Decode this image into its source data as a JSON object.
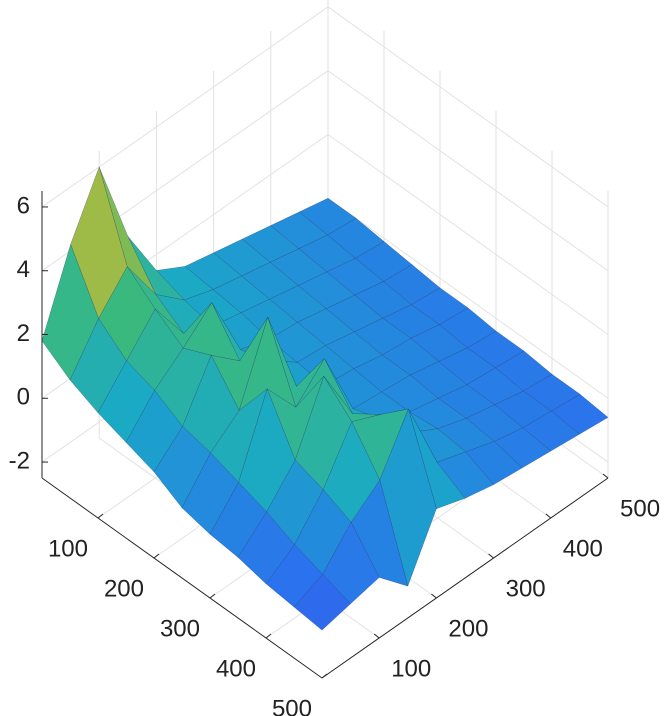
{
  "chart_data": {
    "type": "surface",
    "x": [
      0,
      50,
      100,
      150,
      200,
      250,
      300,
      350,
      400,
      450,
      500
    ],
    "y": [
      0,
      50,
      100,
      150,
      200,
      250,
      300,
      350,
      400,
      450,
      500
    ],
    "z": [
      [
        1.8,
        4.2,
        6.0,
        3.2,
        1.5,
        1.0,
        0.8,
        0.6,
        0.4,
        0.2,
        0.0
      ],
      [
        1.2,
        2.5,
        3.5,
        2.0,
        1.2,
        0.9,
        0.7,
        0.5,
        0.3,
        0.1,
        0.0
      ],
      [
        0.8,
        1.8,
        2.8,
        1.4,
        1.0,
        0.8,
        0.6,
        0.4,
        0.2,
        0.0,
        -0.1
      ],
      [
        0.5,
        1.5,
        2.2,
        3.0,
        0.9,
        0.6,
        0.5,
        0.3,
        0.1,
        -0.1,
        -0.2
      ],
      [
        0.2,
        1.0,
        2.6,
        1.8,
        1.2,
        0.5,
        0.4,
        0.2,
        0.0,
        -0.2,
        -0.3
      ],
      [
        -0.3,
        0.8,
        1.5,
        3.8,
        1.0,
        0.4,
        0.3,
        0.1,
        0.0,
        -0.2,
        -0.3
      ],
      [
        -0.5,
        0.5,
        2.8,
        1.6,
        2.5,
        0.3,
        0.2,
        0.1,
        -0.1,
        -0.3,
        -0.4
      ],
      [
        -0.6,
        0.2,
        1.2,
        3.2,
        1.4,
        0.6,
        0.2,
        0.0,
        -0.2,
        -0.3,
        -0.4
      ],
      [
        -0.8,
        -0.2,
        0.9,
        2.4,
        2.0,
        0.8,
        0.3,
        0.0,
        -0.2,
        -0.4,
        -0.5
      ],
      [
        -0.9,
        -0.5,
        0.5,
        1.2,
        2.8,
        0.5,
        0.2,
        -0.1,
        -0.3,
        -0.4,
        -0.5
      ],
      [
        -1.0,
        -0.8,
        -0.6,
        -1.5,
        0.3,
        0.0,
        -0.2,
        -0.3,
        -0.4,
        -0.5,
        -0.6
      ]
    ],
    "xlim": [
      0,
      500
    ],
    "ylim": [
      0,
      500
    ],
    "zlim": [
      -2.5,
      6.5
    ],
    "xticks": [
      100,
      200,
      300,
      400,
      500
    ],
    "yticks": [
      100,
      200,
      300,
      400,
      500
    ],
    "zticks": [
      -2,
      0,
      2,
      4,
      6
    ],
    "grid": true,
    "colormap": [
      "#3e26a8",
      "#2c6ff0",
      "#1aa9c6",
      "#3fbc73",
      "#d4ba2e",
      "#f9fb0e"
    ]
  }
}
